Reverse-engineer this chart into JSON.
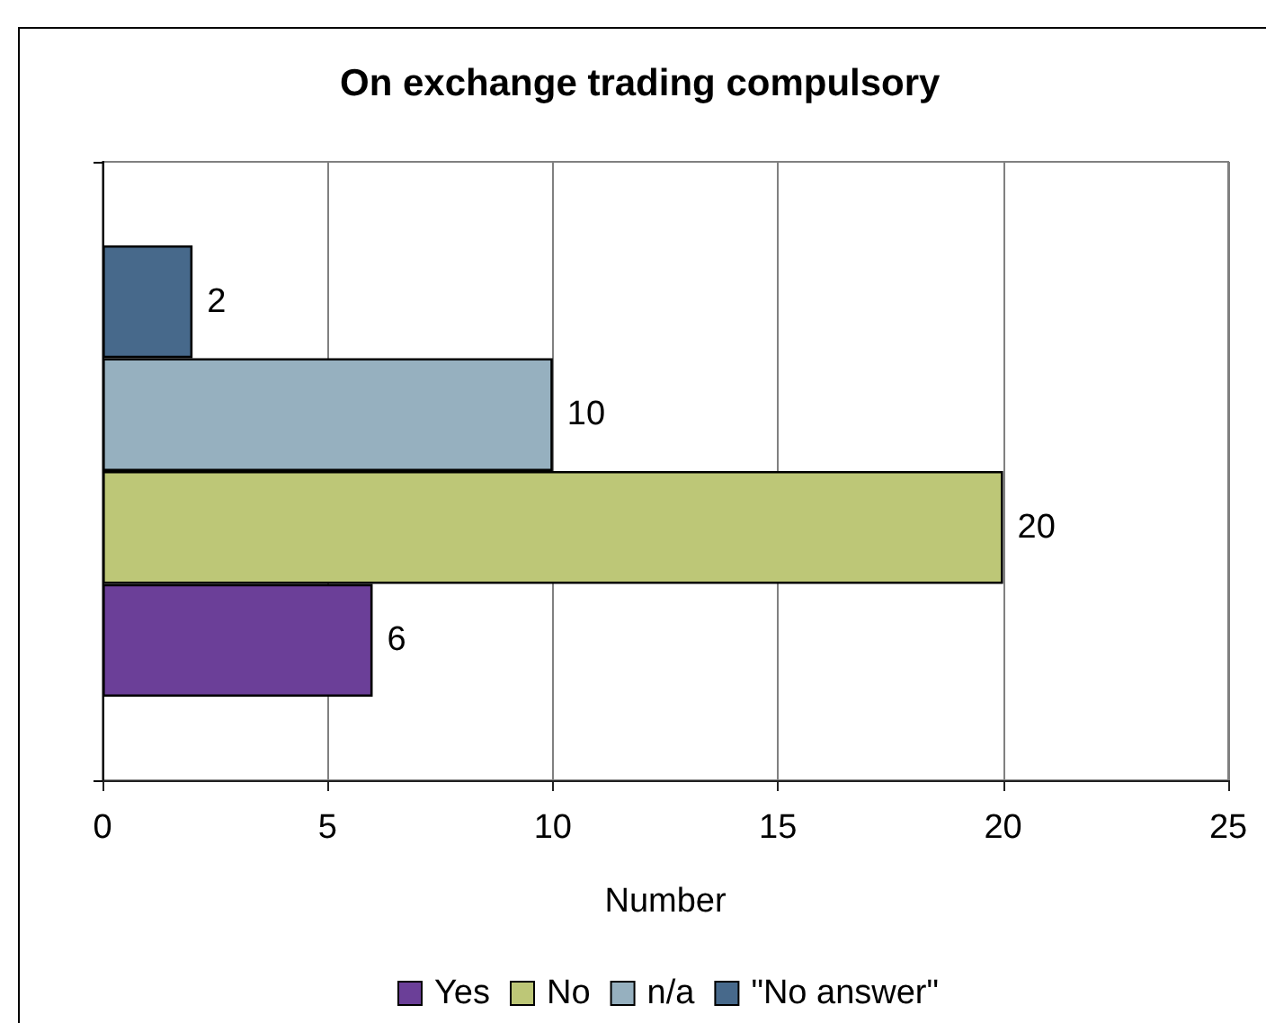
{
  "chart_data": {
    "type": "bar",
    "orientation": "horizontal",
    "title": "On exchange trading compulsory",
    "xlabel": "Number",
    "categories": [
      null
    ],
    "series": [
      {
        "name": "Yes",
        "color": "#6b3f98",
        "values": [
          6
        ]
      },
      {
        "name": "No",
        "color": "#bdc777",
        "values": [
          20
        ]
      },
      {
        "name": "n/a",
        "color": "#96b0bf",
        "values": [
          10
        ]
      },
      {
        "name": "\"No answer\"",
        "color": "#47698b",
        "values": [
          2
        ]
      }
    ],
    "xlim": [
      0,
      25
    ],
    "xticks": [
      0,
      5,
      10,
      15,
      20,
      25
    ],
    "grid": "x",
    "legend": "bottom",
    "data_labels": true
  }
}
